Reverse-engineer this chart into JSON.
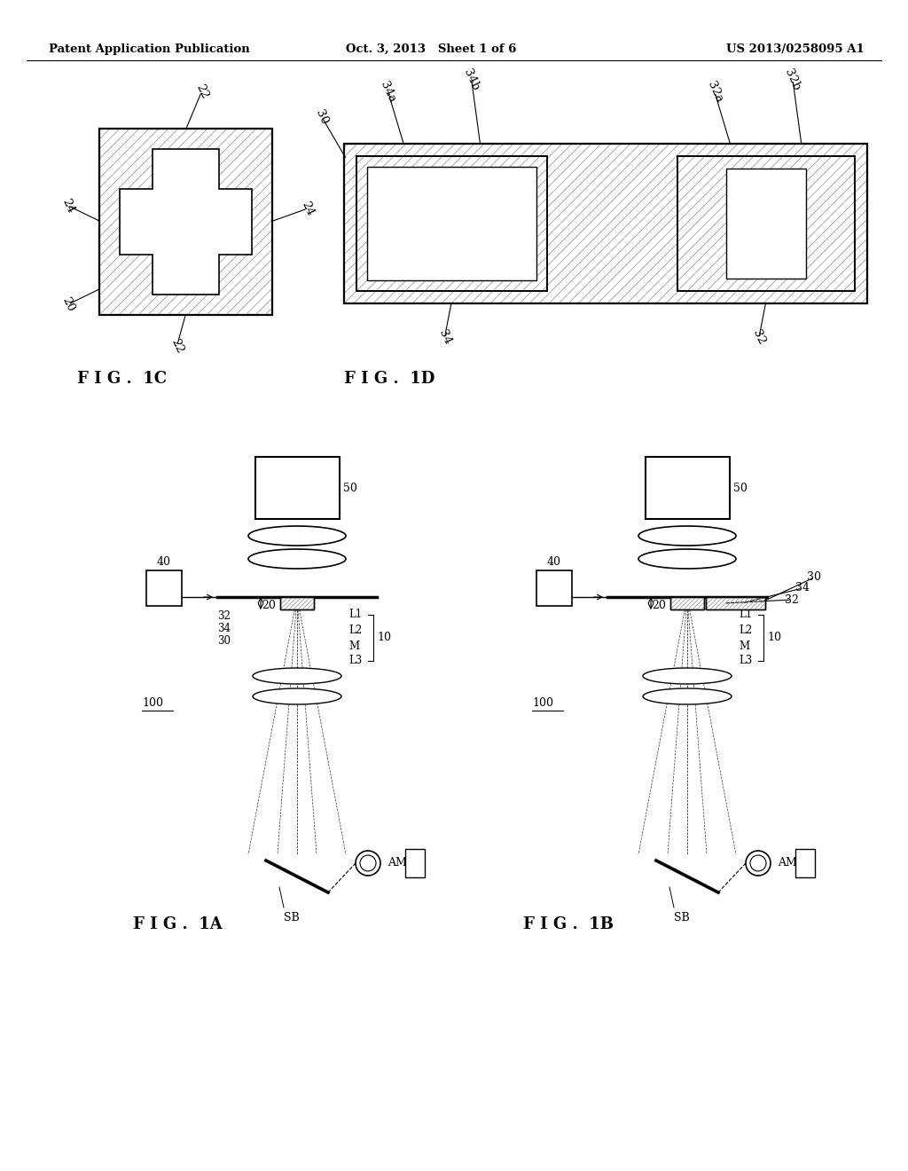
{
  "bg_color": "#ffffff",
  "header_left": "Patent Application Publication",
  "header_mid": "Oct. 3, 2013   Sheet 1 of 6",
  "header_right": "US 2013/0258095 A1"
}
